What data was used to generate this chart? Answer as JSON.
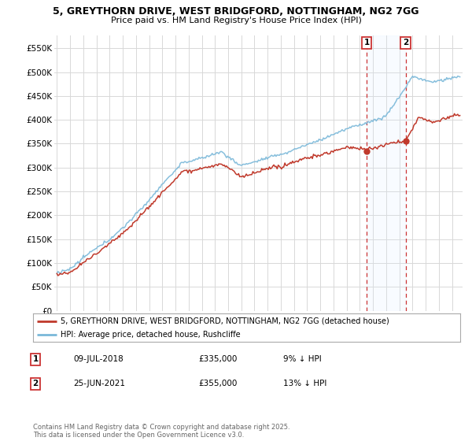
{
  "title_line1": "5, GREYTHORN DRIVE, WEST BRIDGFORD, NOTTINGHAM, NG2 7GG",
  "title_line2": "Price paid vs. HM Land Registry's House Price Index (HPI)",
  "xlim_start": 1994.8,
  "xlim_end": 2025.8,
  "ylim": [
    0,
    577000
  ],
  "yticks": [
    0,
    50000,
    100000,
    150000,
    200000,
    250000,
    300000,
    350000,
    400000,
    450000,
    500000,
    550000
  ],
  "ytick_labels": [
    "£0",
    "£50K",
    "£100K",
    "£150K",
    "£200K",
    "£250K",
    "£300K",
    "£350K",
    "£400K",
    "£450K",
    "£500K",
    "£550K"
  ],
  "sale1_date": 2018.52,
  "sale1_price": 335000,
  "sale1_label": "09-JUL-2018",
  "sale1_text": "£335,000",
  "sale1_note": "9% ↓ HPI",
  "sale2_date": 2021.48,
  "sale2_price": 355000,
  "sale2_label": "25-JUN-2021",
  "sale2_text": "£355,000",
  "sale2_note": "13% ↓ HPI",
  "hpi_color": "#7ab8d9",
  "price_color": "#c0392b",
  "vline_color": "#cc3333",
  "shade_color": "#ddeeff",
  "background_color": "#ffffff",
  "grid_color": "#d8d8d8",
  "legend_label_price": "5, GREYTHORN DRIVE, WEST BRIDGFORD, NOTTINGHAM, NG2 7GG (detached house)",
  "legend_label_hpi": "HPI: Average price, detached house, Rushcliffe",
  "footnote": "Contains HM Land Registry data © Crown copyright and database right 2025.\nThis data is licensed under the Open Government Licence v3.0."
}
